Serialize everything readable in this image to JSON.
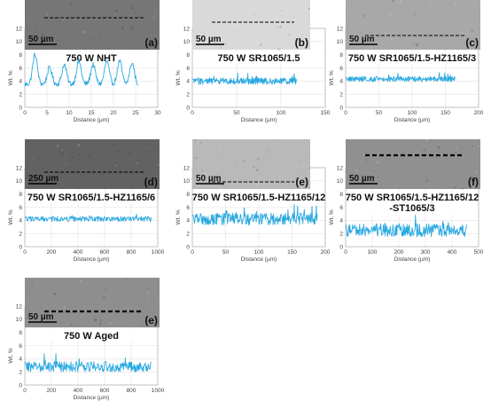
{
  "chart_data": [
    {
      "type": "line",
      "panel_letter": "(a)",
      "title": "750 W NHT",
      "scale_bar": "50 µm",
      "xlabel": "Distance (µm)",
      "ylabel": "Wt. %",
      "xlim": [
        0,
        30
      ],
      "ylim": [
        0,
        12
      ],
      "xticks": [
        0,
        5,
        10,
        15,
        20,
        25,
        30
      ],
      "yticks": [
        0,
        2,
        4,
        6,
        8,
        10,
        12
      ],
      "x_extent": [
        0,
        25.5
      ],
      "peaks": [
        2.3,
        5.6,
        8.9,
        12.2,
        15.4,
        18.5,
        21.4,
        24.2
      ],
      "baseline": 3.5,
      "peak_values": [
        8.0,
        6.0,
        6.5,
        7.0,
        6.5,
        7.0,
        7.0,
        6.7
      ],
      "style": "periodic"
    },
    {
      "type": "line",
      "panel_letter": "(b)",
      "title": "750 W SR1065/1.5",
      "scale_bar": "50 µm",
      "xlabel": "Distance (µm)",
      "ylabel": "Wt. %",
      "xlim": [
        0,
        150
      ],
      "ylim": [
        0,
        12
      ],
      "xticks": [
        0,
        50,
        100,
        150
      ],
      "yticks": [
        0,
        2,
        4,
        6,
        8,
        10,
        12
      ],
      "x_extent": [
        0,
        118
      ],
      "mean": 4.0,
      "spread": 0.5,
      "style": "noisy"
    },
    {
      "type": "line",
      "panel_letter": "(c)",
      "title": "750 W SR1065/1.5-HZ1165/3",
      "scale_bar": "50 µm",
      "xlabel": "Distance (µm)",
      "ylabel": "Wt. %",
      "xlim": [
        0,
        200
      ],
      "ylim": [
        0,
        12
      ],
      "xticks": [
        0,
        50,
        100,
        150,
        200
      ],
      "yticks": [
        0,
        2,
        4,
        6,
        8,
        10,
        12
      ],
      "x_extent": [
        0,
        165
      ],
      "mean": 4.3,
      "spread": 0.4,
      "style": "noisy"
    },
    {
      "type": "line",
      "panel_letter": "(d)",
      "title": "750 W SR1065/1.5-HZ1165/6",
      "scale_bar": "250 µm",
      "xlabel": "Distance (µm)",
      "ylabel": "Wt. %",
      "xlim": [
        0,
        1000
      ],
      "ylim": [
        0,
        12
      ],
      "xticks": [
        0,
        200,
        400,
        600,
        800,
        1000
      ],
      "yticks": [
        0,
        2,
        4,
        6,
        8,
        10,
        12
      ],
      "x_extent": [
        0,
        950
      ],
      "mean": 4.2,
      "spread": 0.4,
      "style": "noisy"
    },
    {
      "type": "line",
      "panel_letter": "(e)",
      "title": "750 W SR1065/1.5-HZ1165/12",
      "scale_bar": "50 µm",
      "xlabel": "Distance (µm)",
      "ylabel": "Wt. %",
      "xlim": [
        0,
        200
      ],
      "ylim": [
        0,
        12
      ],
      "xticks": [
        0,
        50,
        100,
        150,
        200
      ],
      "yticks": [
        0,
        2,
        4,
        6,
        8,
        10,
        12
      ],
      "x_extent": [
        0,
        188
      ],
      "mean": 4.2,
      "spread": 0.9,
      "style": "noisy"
    },
    {
      "type": "line",
      "panel_letter": "(f)",
      "title": "750 W SR1065/1.5-HZ1165/12\n-ST1065/3",
      "scale_bar": "50 µm",
      "xlabel": "Distance (µm)",
      "ylabel": "Wt. %",
      "xlim": [
        0,
        500
      ],
      "ylim": [
        0,
        12
      ],
      "xticks": [
        0,
        100,
        200,
        300,
        400,
        500
      ],
      "yticks": [
        0,
        2,
        4,
        6,
        8,
        10,
        12
      ],
      "x_extent": [
        0,
        455
      ],
      "mean": 2.5,
      "spread": 1.0,
      "style": "noisy"
    },
    {
      "type": "line",
      "panel_letter": "(e)",
      "title": "750 W Aged",
      "scale_bar": "50 µm",
      "xlabel": "Distance (µm)",
      "ylabel": "Wt. %",
      "xlim": [
        0,
        1000
      ],
      "ylim": [
        0,
        12
      ],
      "xticks": [
        0,
        200,
        400,
        600,
        800,
        1000
      ],
      "yticks": [
        0,
        2,
        4,
        6,
        8,
        10,
        12
      ],
      "x_extent": [
        0,
        950
      ],
      "mean": 2.8,
      "spread": 0.8,
      "style": "noisy"
    }
  ],
  "colors": {
    "trace": "#29a9e0",
    "micrograph": "#8a8a8a"
  }
}
